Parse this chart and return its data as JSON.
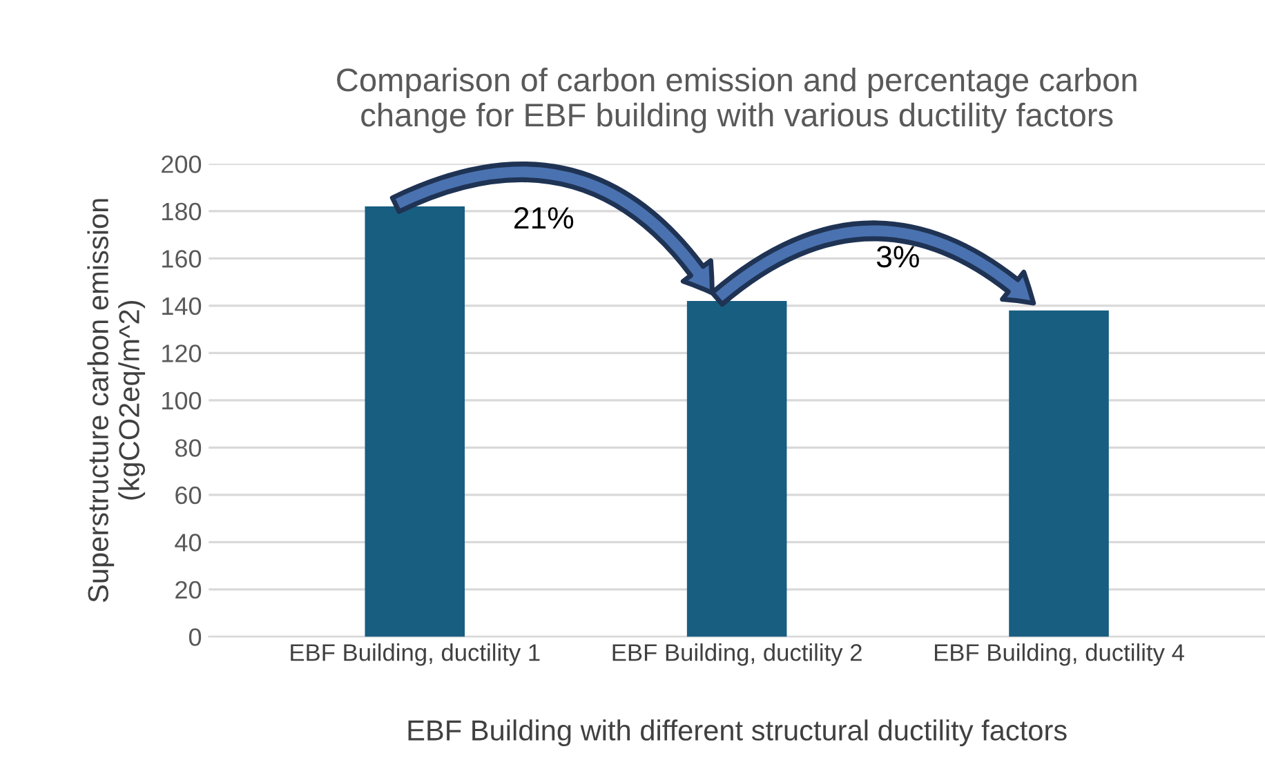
{
  "chart_data": {
    "type": "bar",
    "title": "Comparison of carbon emission and percentage carbon\nchange for EBF building with various ductility factors",
    "xlabel": "EBF Building with different structural ductility factors",
    "ylabel": "Superstructure carbon emission\n(kgCO2eq/m^2)",
    "categories": [
      "EBF Building, ductility 1",
      "EBF Building, ductility 2",
      "EBF Building, ductility 4"
    ],
    "values": [
      182,
      142,
      138
    ],
    "color": "#175e80",
    "ylim": [
      0,
      200
    ],
    "yticks": [
      0,
      20,
      40,
      60,
      80,
      100,
      120,
      140,
      160,
      180,
      200
    ],
    "grid": "y",
    "annotations": [
      "21%",
      "3%"
    ]
  }
}
